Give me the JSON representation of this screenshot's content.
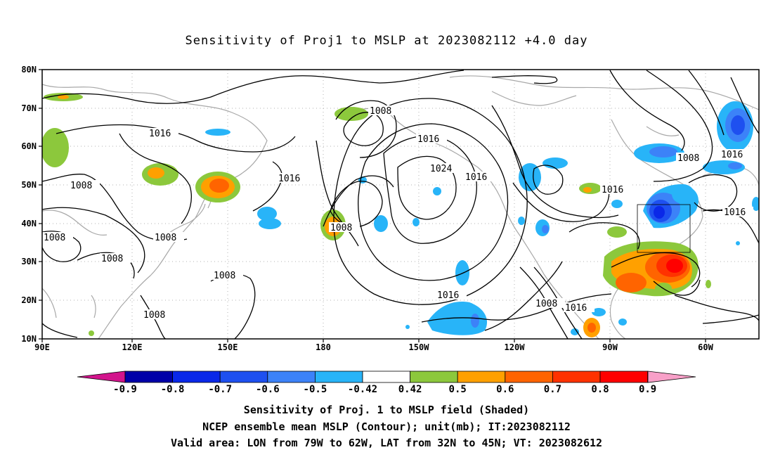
{
  "title": "Sensitivity of Proj1 to MSLP at 2023082112 +4.0 day",
  "map": {
    "lon_labels": [
      "90E",
      "120E",
      "150E",
      "180",
      "150W",
      "120W",
      "90W",
      "60W"
    ],
    "lat_labels": [
      "80N",
      "70N",
      "60N",
      "50N",
      "40N",
      "30N",
      "20N",
      "10N"
    ],
    "contour_labels": [
      "1016",
      "1008",
      "1008",
      "1008",
      "1008",
      "1008",
      "1008",
      "1008",
      "1008",
      "1016",
      "1016",
      "1016",
      "1024",
      "1016",
      "1016",
      "1016",
      "1008",
      "1008",
      "1016",
      "1016"
    ],
    "box": {
      "lon_from": "79W",
      "lon_to": "62W",
      "lat_from": "32N",
      "lat_to": "45N"
    }
  },
  "colorbar": {
    "labels": [
      "-0.9",
      "-0.8",
      "-0.7",
      "-0.6",
      "-0.5",
      "-0.42",
      "0.42",
      "0.5",
      "0.6",
      "0.7",
      "0.8",
      "0.9"
    ],
    "colors": [
      "#0000a8",
      "#0a28e8",
      "#1e50f0",
      "#3c82f8",
      "#28b4f8",
      "#ffffff",
      "#8cc83c",
      "#ffa000",
      "#ff6400",
      "#ff3200",
      "#ff0000"
    ],
    "low_color": "#d2148c",
    "high_color": "#f8a0c8"
  },
  "captions": {
    "line1": "Sensitivity of Proj. 1 to MSLP field (Shaded)",
    "line2": "NCEP ensemble mean MSLP (Contour); unit(mb); IT:2023082112",
    "line3": "Valid area: LON from 79W to 62W, LAT from 32N to 45N; VT: 2023082612"
  }
}
